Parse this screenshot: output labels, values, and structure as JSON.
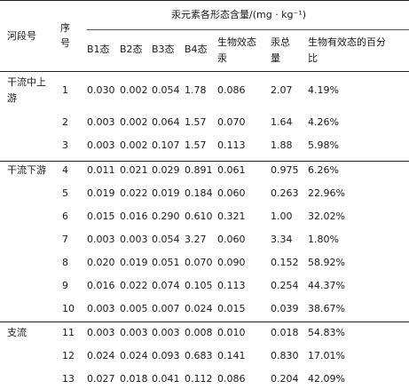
{
  "header": {
    "river_section": "河段号",
    "seq_line1": "序",
    "seq_line2": "号",
    "group_title": "汞元素各形态含量/(mg · kg⁻¹)",
    "b1": "B1态",
    "b2": "B2态",
    "b3": "B3态",
    "b4": "B4态",
    "bio_line1": "生物效态",
    "bio_line2": "汞",
    "total_line1": "汞总",
    "total_line2": "量",
    "pct_line1": "生物有效态的百分",
    "pct_line2": "比"
  },
  "sections": [
    {
      "label_line1": "干流中上",
      "label_line2": "游"
    },
    {
      "label_line1": "干流下游",
      "label_line2": ""
    },
    {
      "label_line1": "支流",
      "label_line2": ""
    }
  ],
  "rows": [
    {
      "seq": "1",
      "b1": "0.030",
      "b2": "0.002",
      "b3": "0.054",
      "b4": "1.78",
      "bio": "0.086",
      "total": "2.07",
      "pct": "4.19%"
    },
    {
      "seq": "2",
      "b1": "0.003",
      "b2": "0.002",
      "b3": "0.064",
      "b4": "1.57",
      "bio": "0.070",
      "total": "1.64",
      "pct": "4.26%"
    },
    {
      "seq": "3",
      "b1": "0.003",
      "b2": "0.002",
      "b3": "0.107",
      "b4": "1.57",
      "bio": "0.113",
      "total": "1.88",
      "pct": "5.98%"
    },
    {
      "seq": "4",
      "b1": "0.011",
      "b2": "0.021",
      "b3": "0.029",
      "b4": "0.891",
      "bio": "0.061",
      "total": "0.975",
      "pct": "6.26%"
    },
    {
      "seq": "5",
      "b1": "0.019",
      "b2": "0.022",
      "b3": "0.019",
      "b4": "0.184",
      "bio": "0.060",
      "total": "0.263",
      "pct": "22.96%"
    },
    {
      "seq": "6",
      "b1": "0.015",
      "b2": "0.016",
      "b3": "0.290",
      "b4": "0.610",
      "bio": "0.321",
      "total": "1.00",
      "pct": "32.02%"
    },
    {
      "seq": "7",
      "b1": "0.003",
      "b2": "0.003",
      "b3": "0.054",
      "b4": "3.27",
      "bio": "0.060",
      "total": "3.34",
      "pct": "1.80%"
    },
    {
      "seq": "8",
      "b1": "0.020",
      "b2": "0.019",
      "b3": "0.051",
      "b4": "0.070",
      "bio": "0.090",
      "total": "0.152",
      "pct": "58.92%"
    },
    {
      "seq": "9",
      "b1": "0.016",
      "b2": "0.022",
      "b3": "0.074",
      "b4": "0.105",
      "bio": "0.113",
      "total": "0.254",
      "pct": "44.37%"
    },
    {
      "seq": "10",
      "b1": "0.003",
      "b2": "0.005",
      "b3": "0.007",
      "b4": "0.024",
      "bio": "0.015",
      "total": "0.039",
      "pct": "38.67%"
    },
    {
      "seq": "11",
      "b1": "0.003",
      "b2": "0.003",
      "b3": "0.003",
      "b4": "0.008",
      "bio": "0.010",
      "total": "0.018",
      "pct": "54.83%"
    },
    {
      "seq": "12",
      "b1": "0.024",
      "b2": "0.024",
      "b3": "0.093",
      "b4": "0.683",
      "bio": "0.141",
      "total": "0.830",
      "pct": "17.01%"
    },
    {
      "seq": "13",
      "b1": "0.027",
      "b2": "0.018",
      "b3": "0.041",
      "b4": "0.112",
      "bio": "0.086",
      "total": "0.204",
      "pct": "42.09%"
    }
  ]
}
